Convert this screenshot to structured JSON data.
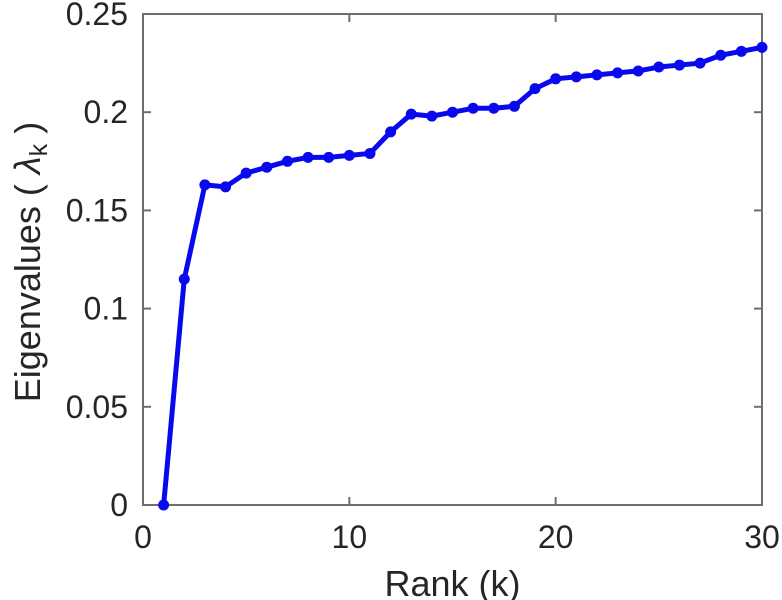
{
  "chart_data": {
    "type": "line",
    "title": "",
    "xlabel": "Rank (k)",
    "ylabel_prefix": "Eigenvalues ( ",
    "ylabel_symbol": "λ",
    "ylabel_subscript": "k",
    "ylabel_suffix": " )",
    "x": [
      1,
      2,
      3,
      4,
      5,
      6,
      7,
      8,
      9,
      10,
      11,
      12,
      13,
      14,
      15,
      16,
      17,
      18,
      19,
      20,
      21,
      22,
      23,
      24,
      25,
      26,
      27,
      28,
      29,
      30
    ],
    "y": [
      0.0,
      0.115,
      0.163,
      0.162,
      0.169,
      0.172,
      0.175,
      0.177,
      0.177,
      0.178,
      0.179,
      0.19,
      0.199,
      0.198,
      0.2,
      0.202,
      0.202,
      0.203,
      0.212,
      0.217,
      0.218,
      0.219,
      0.22,
      0.221,
      0.223,
      0.224,
      0.225,
      0.229,
      0.231,
      0.233
    ],
    "xlim": [
      0,
      30
    ],
    "ylim": [
      0,
      0.25
    ],
    "xticks": [
      0,
      10,
      20,
      30
    ],
    "yticks": [
      0,
      0.05,
      0.1,
      0.15,
      0.2,
      0.25
    ],
    "xtick_labels": [
      "0",
      "10",
      "20",
      "30"
    ],
    "ytick_labels": [
      "0",
      "0.05",
      "0.1",
      "0.15",
      "0.2",
      "0.25"
    ],
    "grid": false,
    "legend": null,
    "box": true,
    "tick_direction": "in",
    "line_color": "#0909ee",
    "marker": "circle",
    "axis_color": "#6e6e6e",
    "text_color": "#262626",
    "background": "#ffffff"
  }
}
